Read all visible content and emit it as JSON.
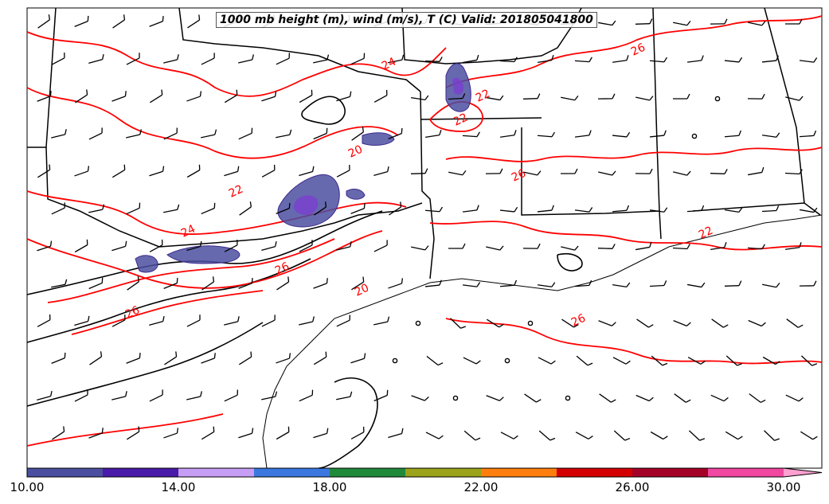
{
  "title": "1000 mb height (m), wind (m/s), T (C) Valid: 201805041800",
  "contour_labels": [
    "24",
    "26",
    "22",
    "20",
    "26",
    "24",
    "22",
    "26",
    "20",
    "22",
    "22",
    "26",
    "26"
  ],
  "colorbar": {
    "ticks": [
      "10.00",
      "14.00",
      "18.00",
      "22.00",
      "26.00",
      "30.00"
    ],
    "colors": [
      "#4b4fa0",
      "#4a1aa8",
      "#c79ef5",
      "#3a78e0",
      "#1f8a3a",
      "#9aa31a",
      "#ff7f0e",
      "#d40000",
      "#a50026",
      "#f047a0",
      "#ffa0d0"
    ]
  },
  "colors": {
    "temperature_contour": "#ff0000",
    "height_contour": "#000000",
    "wind_barb": "#000000",
    "precip_fill": "#4b4fa0"
  }
}
